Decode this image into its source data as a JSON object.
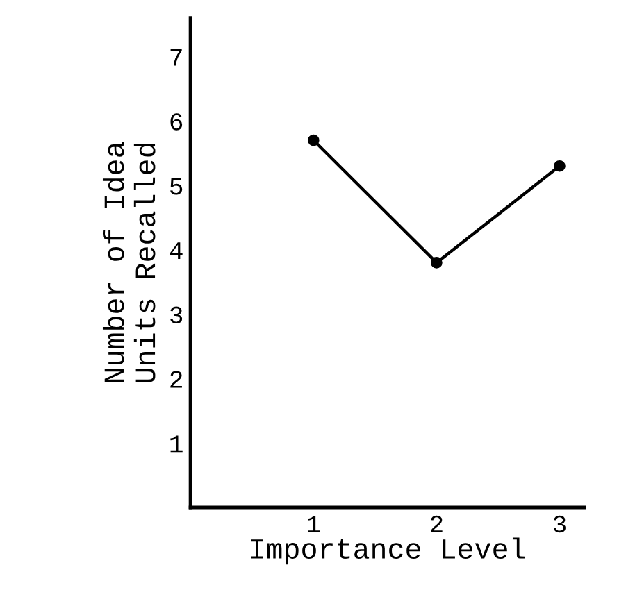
{
  "chart_data": {
    "type": "line",
    "xlabel": "Importance Level",
    "ylabel": "Number of Idea\nUnits Recalled",
    "x": [
      1,
      2,
      3
    ],
    "series": [
      {
        "color": "#000000",
        "values": [
          5.7,
          3.8,
          5.3
        ]
      }
    ],
    "xlim": [
      0,
      3.2
    ],
    "ylim": [
      0,
      7.6
    ],
    "xticks": [
      1,
      2,
      3
    ],
    "yticks": [
      1,
      2,
      3,
      4,
      5,
      6,
      7
    ],
    "marker": "circle",
    "line_style": "solid",
    "grid": false
  }
}
